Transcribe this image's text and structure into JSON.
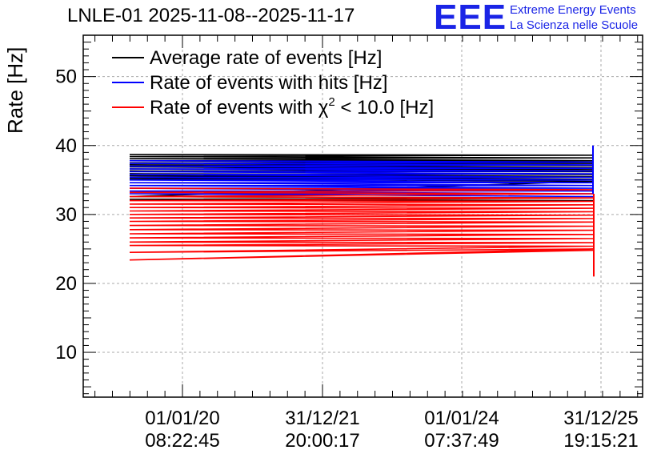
{
  "title": "LNLE-01 2025-11-08--2025-11-17",
  "logo": {
    "mark": "EEE",
    "line1": "Extreme Energy Events",
    "line2": "La Scienza nelle Scuole"
  },
  "colors": {
    "average": "#000000",
    "hits": "#0000ff",
    "chi2": "#ff0000",
    "grid": "#aaaaaa",
    "logo": "#1a24e6"
  },
  "chart_data": {
    "type": "line",
    "title": "LNLE-01 2025-11-08--2025-11-17",
    "xlabel": "",
    "ylabel": "Rate [Hz]",
    "ylim": [
      3.5,
      56
    ],
    "yticks": [
      10,
      20,
      30,
      40,
      50
    ],
    "x_axis": {
      "kind": "time",
      "tick_labels": [
        {
          "date": "01/01/20",
          "time": "08:22:45"
        },
        {
          "date": "31/12/21",
          "time": "20:00:17"
        },
        {
          "date": "01/01/24",
          "time": "07:37:49"
        },
        {
          "date": "31/12/25",
          "time": "19:15:21"
        }
      ]
    },
    "grid": true,
    "legend": {
      "placement": "top-left",
      "entries": [
        {
          "key": "average",
          "text": "Average rate of events [Hz]"
        },
        {
          "key": "hits",
          "text": "Rate of events with hits [Hz]"
        },
        {
          "key": "chi2",
          "text": "Rate of events with χ² < 10.0 [Hz]",
          "pre": "Rate of events with χ",
          "sup": "2",
          "post": " < 10.0 [Hz]"
        }
      ]
    },
    "series": [
      {
        "name": "Average rate of events [Hz]",
        "color": "#000000",
        "start_values": [
          38.7,
          38.4,
          38.1,
          37.8,
          37.5,
          37.2,
          36.9,
          36.6,
          36.3,
          35.9,
          35.6,
          35.2,
          32.6,
          32.2
        ],
        "end_values": [
          38.6,
          38.2,
          37.8,
          37.4,
          37.1,
          36.8,
          36.5,
          36.2,
          35.8,
          35.5,
          35.1,
          34.8,
          32.4,
          32.0
        ]
      },
      {
        "name": "Rate of events with hits [Hz]",
        "color": "#0000ff",
        "start_values": [
          37.8,
          37.4,
          37.0,
          36.6,
          36.2,
          35.8,
          35.4,
          35.0,
          34.6,
          34.2,
          33.8,
          33.4,
          33.0
        ],
        "end_values": [
          37.6,
          37.2,
          36.7,
          36.3,
          35.9,
          35.4,
          35.0,
          34.6,
          34.2,
          33.8,
          33.4,
          33.0,
          32.6
        ]
      },
      {
        "name": "Rate of events with χ² < 10.0 [Hz]",
        "color": "#ff0000",
        "start_values": [
          33.8,
          33.2,
          32.6,
          32.0,
          31.5,
          31.0,
          30.5,
          30.0,
          29.5,
          29.0,
          28.4,
          27.8,
          27.2,
          26.6,
          26.0,
          25.5,
          24.5,
          23.4
        ],
        "end_values": [
          33.6,
          33.0,
          32.4,
          31.9,
          31.4,
          30.9,
          30.4,
          29.9,
          29.4,
          28.9,
          28.3,
          27.7,
          27.1,
          26.5,
          25.9,
          25.4,
          25.0,
          24.8
        ]
      }
    ]
  }
}
